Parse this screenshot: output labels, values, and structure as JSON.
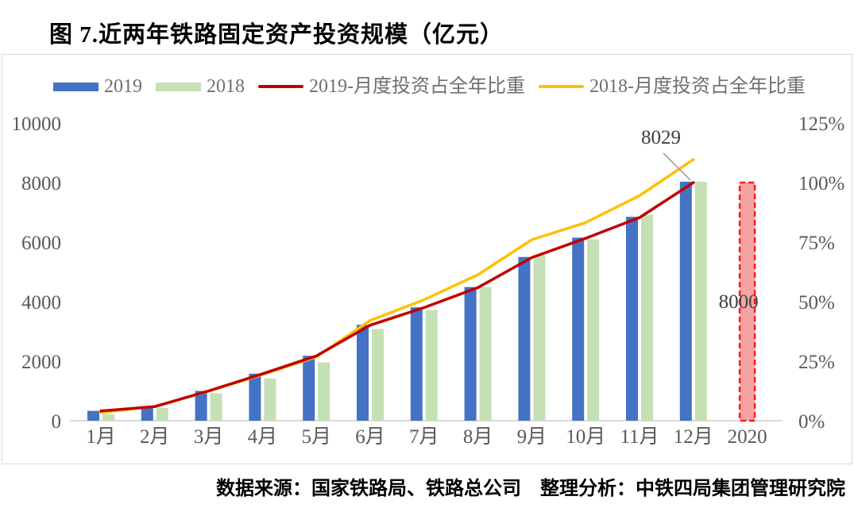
{
  "title": "图 7.近两年铁路固定资产投资规模（亿元）",
  "source": "数据来源：国家铁路局、铁路总公司　整理分析：中铁四局集团管理研究院",
  "legend": {
    "items": [
      {
        "label": "2019",
        "type": "bar",
        "color": "#4472C4"
      },
      {
        "label": "2018",
        "type": "bar",
        "color": "#C5E0B4"
      },
      {
        "label": "2019-月度投资占全年比重",
        "type": "line",
        "color": "#C00000"
      },
      {
        "label": "2018-月度投资占全年比重",
        "type": "line",
        "color": "#FFC000"
      }
    ]
  },
  "colors": {
    "bar_2019": "#4472C4",
    "bar_2018": "#C5E0B4",
    "line_2019": "#C00000",
    "line_2018": "#FFC000",
    "special_bar_fill": "#F5A3A3",
    "special_bar_border": "#FF1A1A",
    "axis_text": "#595959",
    "axis_line": "#d9d9d9",
    "data_label": "#3f3f3f",
    "leader_line": "#a6a6a6"
  },
  "chart_data": {
    "type": "bar",
    "subtype": "combo bar + cumulative-percent lines, dual axis",
    "categories": [
      "1月",
      "2月",
      "3月",
      "4月",
      "5月",
      "6月",
      "7月",
      "8月",
      "9月",
      "10月",
      "11月",
      "12月",
      "2020"
    ],
    "bar_series": [
      {
        "name": "2019",
        "color": "#4472C4",
        "values": [
          330,
          450,
          1000,
          1580,
          2180,
          3220,
          3810,
          4490,
          5500,
          6150,
          6850,
          8029
        ]
      },
      {
        "name": "2018",
        "color": "#C5E0B4",
        "values": [
          220,
          430,
          920,
          1420,
          1960,
          3080,
          3720,
          4490,
          5560,
          6090,
          6920,
          8028
        ]
      }
    ],
    "line_series": [
      {
        "name": "2019-月度投资占全年比重",
        "color": "#C00000",
        "values_pct": [
          4.1,
          5.9,
          12.5,
          19.7,
          27.2,
          40.1,
          47.5,
          55.9,
          68.5,
          76.6,
          85.3,
          100.0
        ]
      },
      {
        "name": "2018-月度投资占全年比重",
        "color": "#FFC000",
        "values_pct": [
          3.4,
          6.0,
          12.4,
          19.4,
          26.8,
          42.1,
          50.8,
          61.3,
          76.0,
          83.2,
          94.5,
          109.7
        ]
      }
    ],
    "special_bar": {
      "category": "2020",
      "value": 8000,
      "label": "8000",
      "fill": "#F5A3A3",
      "border": "#FF1A1A",
      "border_style": "dashed"
    },
    "annotations": [
      {
        "text": "8029",
        "note": "callout with gray leader line to top of 2019 12月 bar / end of red line"
      }
    ],
    "left_axis": {
      "ticks": [
        "0",
        "2000",
        "4000",
        "6000",
        "8000",
        "10000"
      ],
      "min": 0,
      "max": 10000
    },
    "right_axis": {
      "ticks": [
        "0%",
        "25%",
        "50%",
        "75%",
        "100%",
        "125%"
      ],
      "min": 0,
      "max": 125
    },
    "xlabel": "",
    "ylabel": "",
    "grid": "off",
    "legend_position": "top"
  }
}
